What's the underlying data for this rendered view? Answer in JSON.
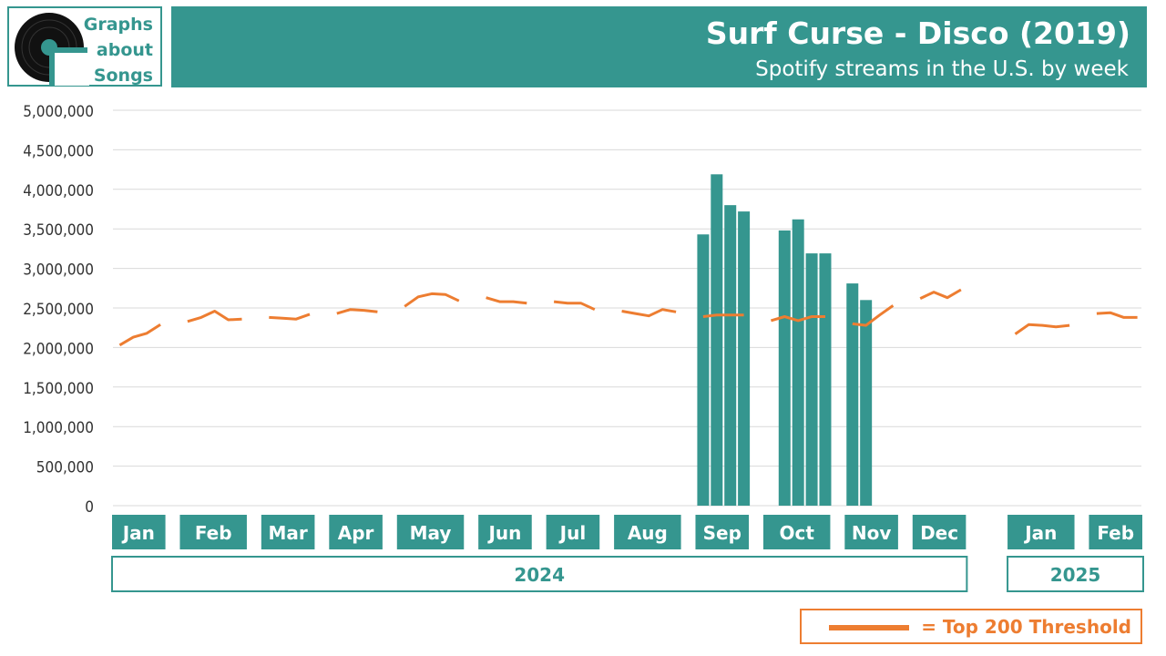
{
  "logo": {
    "text": "Graphs\nabout\nSongs",
    "icon": "vinyl-record-icon"
  },
  "header": {
    "title": "Surf Curse - Disco (2019)",
    "subtitle": "Spotify streams in the U.S. by week"
  },
  "legend": {
    "label": "= Top 200 Threshold"
  },
  "colors": {
    "bar": "#35968f",
    "threshold": "#ed7d31",
    "grid": "#d9d9d9",
    "axis_text": "#333333"
  },
  "chart_data": {
    "type": "bar",
    "title": "Surf Curse - Disco (2019)",
    "subtitle": "Spotify streams in the U.S. by week",
    "ylim": [
      0,
      5000000
    ],
    "y_ticks": [
      "0",
      "500,000",
      "1,000,000",
      "1,500,000",
      "2,000,000",
      "2,500,000",
      "3,000,000",
      "3,500,000",
      "4,000,000",
      "4,500,000",
      "5,000,000"
    ],
    "grid": true,
    "months": [
      {
        "label": "Jan",
        "weeks": 4
      },
      {
        "label": "Feb",
        "weeks": 5
      },
      {
        "label": "Mar",
        "weeks": 4
      },
      {
        "label": "Apr",
        "weeks": 4
      },
      {
        "label": "May",
        "weeks": 5
      },
      {
        "label": "Jun",
        "weeks": 4
      },
      {
        "label": "Jul",
        "weeks": 4
      },
      {
        "label": "Aug",
        "weeks": 5
      },
      {
        "label": "Sep",
        "weeks": 4
      },
      {
        "label": "Oct",
        "weeks": 5
      },
      {
        "label": "Nov",
        "weeks": 4
      },
      {
        "label": "Dec",
        "weeks": 4
      },
      {
        "label": "Jan",
        "weeks": 5
      },
      {
        "label": "Feb",
        "weeks": 4
      }
    ],
    "years": [
      {
        "label": "2024",
        "first_month": 0,
        "last_month": 11
      },
      {
        "label": "2025",
        "first_month": 12,
        "last_month": 13
      }
    ],
    "series": [
      {
        "name": "Streams",
        "type": "bar",
        "values": [
          null,
          null,
          null,
          null,
          null,
          null,
          null,
          null,
          null,
          null,
          null,
          null,
          null,
          null,
          null,
          null,
          null,
          null,
          null,
          null,
          null,
          null,
          null,
          null,
          null,
          null,
          null,
          null,
          null,
          null,
          null,
          null,
          null,
          null,
          null,
          3430000,
          4190000,
          3800000,
          3720000,
          null,
          3480000,
          3620000,
          3190000,
          3190000,
          2810000,
          2600000,
          null,
          null,
          null,
          null,
          null,
          null,
          null,
          null,
          null,
          null,
          null,
          null,
          null,
          null,
          null,
          null,
          null
        ]
      },
      {
        "name": "Top 200 Threshold",
        "type": "line",
        "values": [
          2030000,
          2130000,
          2180000,
          2290000,
          null,
          2330000,
          2380000,
          2460000,
          2350000,
          2360000,
          null,
          2380000,
          2370000,
          2360000,
          2420000,
          null,
          2430000,
          2480000,
          2470000,
          2450000,
          null,
          2520000,
          2640000,
          2680000,
          2670000,
          2590000,
          null,
          2630000,
          2580000,
          2580000,
          2560000,
          null,
          2580000,
          2560000,
          2560000,
          2480000,
          null,
          2460000,
          2430000,
          2400000,
          2480000,
          2450000,
          null,
          2390000,
          2410000,
          2410000,
          2410000,
          null,
          2340000,
          2390000,
          2340000,
          2390000,
          2390000,
          null,
          2300000,
          2280000,
          2410000,
          2530000,
          null,
          2620000,
          2700000,
          2630000,
          2730000,
          null,
          null,
          2170000,
          2290000,
          2280000,
          2260000,
          2280000,
          null,
          2430000,
          2440000,
          2380000,
          2380000
        ]
      }
    ]
  }
}
